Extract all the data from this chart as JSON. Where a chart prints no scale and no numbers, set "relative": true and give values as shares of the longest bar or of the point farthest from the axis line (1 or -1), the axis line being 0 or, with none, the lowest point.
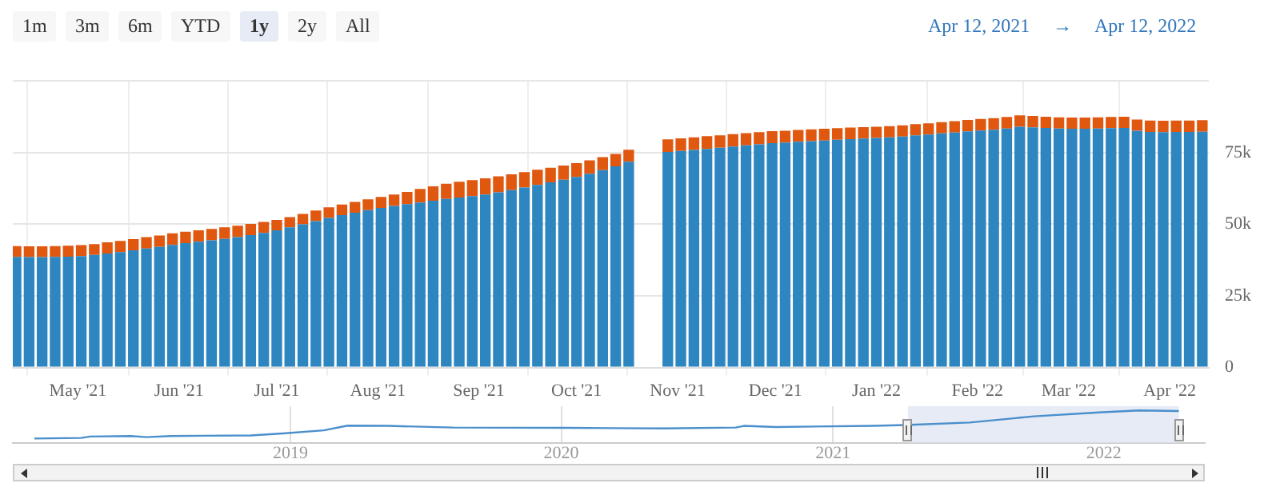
{
  "chart_data": [
    {
      "type": "bar",
      "stacked": true,
      "annotations": [
        "1m",
        "3m",
        "6m",
        "YTD",
        "1y",
        "2y",
        "All",
        "Apr 12, 2021",
        "→",
        "Apr 12, 2022"
      ],
      "x": [
        "2021-04-12",
        "2021-04-16",
        "2021-04-20",
        "2021-04-24",
        "2021-04-28",
        "2021-05-02",
        "2021-05-06",
        "2021-05-10",
        "2021-05-14",
        "2021-05-18",
        "2021-05-22",
        "2021-05-26",
        "2021-05-30",
        "2021-06-03",
        "2021-06-07",
        "2021-06-11",
        "2021-06-15",
        "2021-06-19",
        "2021-06-23",
        "2021-06-27",
        "2021-07-01",
        "2021-07-05",
        "2021-07-09",
        "2021-07-13",
        "2021-07-17",
        "2021-07-21",
        "2021-07-25",
        "2021-07-29",
        "2021-08-02",
        "2021-08-06",
        "2021-08-10",
        "2021-08-14",
        "2021-08-18",
        "2021-08-22",
        "2021-08-26",
        "2021-08-30",
        "2021-09-03",
        "2021-09-07",
        "2021-09-11",
        "2021-09-15",
        "2021-09-19",
        "2021-09-23",
        "2021-09-27",
        "2021-10-01",
        "2021-10-05",
        "2021-10-09",
        "2021-10-13",
        "2021-10-17",
        "2021-10-29",
        "2021-11-02",
        "2021-11-06",
        "2021-11-10",
        "2021-11-14",
        "2021-11-18",
        "2021-11-22",
        "2021-11-26",
        "2021-11-30",
        "2021-12-04",
        "2021-12-08",
        "2021-12-12",
        "2021-12-16",
        "2021-12-20",
        "2021-12-24",
        "2021-12-28",
        "2022-01-01",
        "2022-01-05",
        "2022-01-09",
        "2022-01-13",
        "2022-01-17",
        "2022-01-21",
        "2022-01-25",
        "2022-01-29",
        "2022-02-02",
        "2022-02-06",
        "2022-02-10",
        "2022-02-14",
        "2022-02-18",
        "2022-02-22",
        "2022-02-26",
        "2022-03-02",
        "2022-03-06",
        "2022-03-10",
        "2022-03-14",
        "2022-03-18",
        "2022-03-22",
        "2022-03-26",
        "2022-03-30",
        "2022-04-03",
        "2022-04-07",
        "2022-04-11"
      ],
      "series": [
        {
          "color": "#2e86c1",
          "values": [
            38600,
            38500,
            38500,
            38600,
            38700,
            38900,
            39300,
            39800,
            40300,
            40900,
            41500,
            42100,
            42800,
            43400,
            43900,
            44400,
            44900,
            45500,
            46200,
            47000,
            47900,
            48900,
            50000,
            51100,
            52200,
            53200,
            54000,
            54900,
            55700,
            56400,
            57000,
            57600,
            58200,
            58800,
            59300,
            59800,
            60400,
            61100,
            61900,
            62800,
            63700,
            64600,
            65500,
            66500,
            67600,
            68900,
            70200,
            71800,
            75200,
            75600,
            75900,
            76300,
            76700,
            77100,
            77500,
            77900,
            78300,
            78500,
            78800,
            79000,
            79200,
            79500,
            79700,
            79900,
            80100,
            80300,
            80600,
            81000,
            81300,
            81700,
            82000,
            82400,
            82700,
            83000,
            83400,
            84000,
            83800,
            83600,
            83400,
            83300,
            83300,
            83400,
            83500,
            83600,
            82600,
            82200,
            82100,
            82200,
            82200,
            82300
          ]
        },
        {
          "color": "#e0570f",
          "values": [
            3800,
            3800,
            3800,
            3800,
            3800,
            3800,
            3800,
            3900,
            3900,
            3900,
            4000,
            4000,
            4000,
            4000,
            4000,
            4000,
            4000,
            4000,
            3900,
            3800,
            3600,
            3600,
            3600,
            3700,
            3700,
            3700,
            3800,
            3800,
            3800,
            4000,
            4300,
            4700,
            5000,
            5300,
            5500,
            5600,
            5600,
            5600,
            5500,
            5400,
            5300,
            5100,
            5000,
            4800,
            4700,
            4500,
            4300,
            4200,
            4400,
            4400,
            4400,
            4400,
            4300,
            4300,
            4300,
            4200,
            4200,
            4100,
            4100,
            4100,
            4100,
            4000,
            4000,
            4000,
            3900,
            3900,
            3900,
            3900,
            3900,
            3900,
            4000,
            4000,
            4000,
            4000,
            4000,
            4000,
            4000,
            3900,
            3900,
            3900,
            3900,
            3900,
            3900,
            3900,
            3900,
            4000,
            4000,
            4000,
            4000,
            4000
          ]
        }
      ],
      "xlim": [
        "2021-04-11",
        "2022-04-13"
      ],
      "xticks": [
        {
          "value": "2021-05-01",
          "label": "May '21"
        },
        {
          "value": "2021-06-01",
          "label": "Jun '21"
        },
        {
          "value": "2021-07-01",
          "label": "Jul '21"
        },
        {
          "value": "2021-08-01",
          "label": "Aug '21"
        },
        {
          "value": "2021-09-01",
          "label": "Sep '21"
        },
        {
          "value": "2021-10-01",
          "label": "Oct '21"
        },
        {
          "value": "2021-11-01",
          "label": "Nov '21"
        },
        {
          "value": "2021-12-01",
          "label": "Dec '21"
        },
        {
          "value": "2022-01-01",
          "label": "Jan '22"
        },
        {
          "value": "2022-02-01",
          "label": "Feb '22"
        },
        {
          "value": "2022-03-01",
          "label": "Mar '22"
        },
        {
          "value": "2022-04-01",
          "label": "Apr '22"
        }
      ],
      "ylim": [
        0,
        100000
      ],
      "yticks": [
        0,
        {
          "value": 25000,
          "label": "25k"
        },
        {
          "value": 50000,
          "label": "50k"
        },
        {
          "value": 75000,
          "label": "75k"
        },
        {
          "value": 100000,
          "label": null
        }
      ],
      "grid": true,
      "legend": false
    },
    {
      "type": "line",
      "relative": true,
      "color": "#4a8fcc",
      "grid": "x",
      "legend": false,
      "marker": "none",
      "x": [
        "2018-01-21",
        "2018-03-25",
        "2018-04-06",
        "2018-05-31",
        "2018-06-21",
        "2018-07-24",
        "2018-11-09",
        "2018-12-22",
        "2019-02-15",
        "2019-03-19",
        "2019-05-13",
        "2019-08-08",
        "2020-01-07",
        "2020-05-17",
        "2020-08-23",
        "2020-09-03",
        "2020-10-16",
        "2021-02-24",
        "2021-04-08",
        "2021-07-04",
        "2021-09-29",
        "2021-12-25",
        "2022-02-17",
        "2022-04-12"
      ],
      "values": [
        0,
        0.02,
        0.07,
        0.09,
        0.05,
        0.09,
        0.11,
        0.18,
        0.29,
        0.46,
        0.45,
        0.39,
        0.38,
        0.36,
        0.39,
        0.45,
        0.41,
        0.45,
        0.48,
        0.57,
        0.79,
        0.93,
        1,
        0.98
      ],
      "xlim": [
        "2017-12-23",
        "2022-05-17"
      ],
      "xticks": [
        {
          "value": "2019-01-01",
          "label": "2019"
        },
        {
          "value": "2020-01-01",
          "label": "2020"
        },
        {
          "value": "2021-01-01",
          "label": "2021"
        },
        {
          "value": "2022-01-01",
          "label": "2022"
        }
      ],
      "bands": [
        {
          "axis": "x",
          "from": "2021-04-12",
          "to": "2022-04-12",
          "color": "#e6ebf5"
        }
      ]
    }
  ]
}
